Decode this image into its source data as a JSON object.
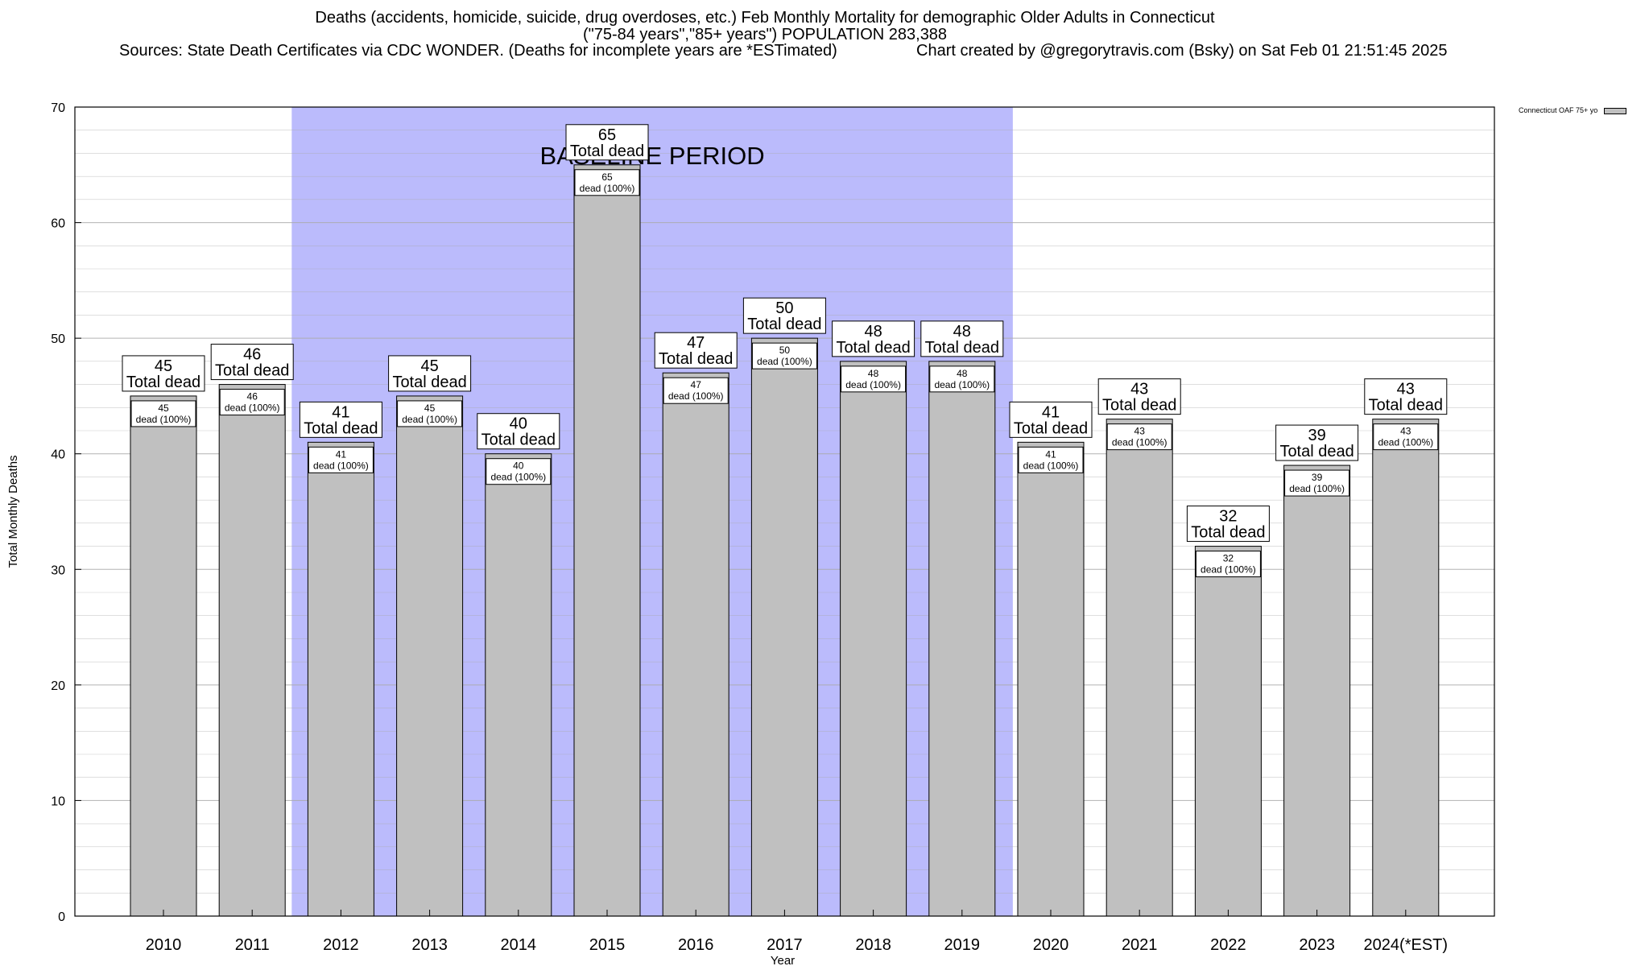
{
  "title": {
    "line1": "Deaths (accidents, homicide, suicide, drug overdoses, etc.) Feb Monthly Mortality for demographic Older Adults in Connecticut",
    "line2": "(\"75-84 years\",\"85+ years\") POPULATION 283,388",
    "sources": "Sources: State Death Certificates via CDC WONDER. (Deaths for incomplete years are *ESTimated)",
    "credit": "Chart created by @gregorytravis.com (Bsky) on Sat Feb 01 21:51:45 2025"
  },
  "legend": {
    "label": "Connecticut OAF 75+ yo"
  },
  "colors": {
    "bar": "#c0c0c0",
    "baseline": "#bbbbfc",
    "grid": "#aaaaaa"
  },
  "chart_data": {
    "type": "bar",
    "categories": [
      "2010",
      "2011",
      "2012",
      "2013",
      "2014",
      "2015",
      "2016",
      "2017",
      "2018",
      "2019",
      "2020",
      "2021",
      "2022",
      "2023",
      "2024(*EST)"
    ],
    "series": [
      {
        "name": "Connecticut OAF 75+ yo",
        "values": [
          45,
          46,
          41,
          45,
          40,
          65,
          47,
          50,
          48,
          48,
          41,
          43,
          32,
          39,
          43
        ]
      }
    ],
    "xlabel": "Year",
    "ylabel": "Total Monthly Deaths",
    "ylim": [
      0,
      70
    ],
    "yticks": [
      0,
      10,
      20,
      30,
      40,
      50,
      60,
      70
    ],
    "grid": true,
    "legend_position": "top-right",
    "baseline_period": {
      "label": "BASELINE PERIOD",
      "from": "2012",
      "to": "2019"
    },
    "data_labels": {
      "total_suffix": "Total dead",
      "inner_suffix": "dead (100%)"
    }
  }
}
